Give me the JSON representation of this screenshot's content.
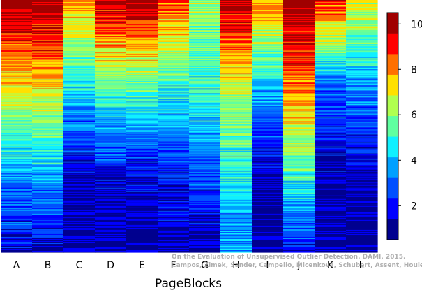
{
  "chart_data": {
    "type": "heatmap",
    "xlabel": "PageBlocks",
    "categories": [
      "A",
      "B",
      "C",
      "D",
      "E",
      "F",
      "G",
      "H",
      "I",
      "J",
      "K",
      "L"
    ],
    "colorbar": {
      "range": [
        0.5,
        10.5
      ],
      "ticks": [
        2,
        4,
        6,
        8,
        10
      ],
      "colors": [
        "#00008F",
        "#0000FF",
        "#0050FF",
        "#00A0FF",
        "#10F0FF",
        "#60FFA0",
        "#B0FF50",
        "#FFE000",
        "#FF7000",
        "#FF0000",
        "#A00000"
      ]
    },
    "columns_profile": [
      {
        "name": "A",
        "top": 10.5,
        "mid": 7.0,
        "low": 3.5,
        "bottom": 1.5
      },
      {
        "name": "B",
        "top": 10.5,
        "mid": 7.2,
        "low": 3.5,
        "bottom": 1.5
      },
      {
        "name": "C",
        "top": 8.0,
        "mid": 4.5,
        "low": 1.3,
        "bottom": 1.0
      },
      {
        "name": "D",
        "top": 10.0,
        "mid": 5.5,
        "low": 1.5,
        "bottom": 1.0
      },
      {
        "name": "E",
        "top": 10.0,
        "mid": 5.5,
        "low": 1.5,
        "bottom": 1.0
      },
      {
        "name": "F",
        "top": 8.5,
        "mid": 5.0,
        "low": 2.0,
        "bottom": 1.0
      },
      {
        "name": "G",
        "top": 6.0,
        "mid": 5.0,
        "low": 2.5,
        "bottom": 1.0
      },
      {
        "name": "H",
        "top": 10.0,
        "mid": 6.5,
        "low": 4.5,
        "bottom": 3.5
      },
      {
        "name": "I",
        "top": 8.0,
        "mid": 4.0,
        "low": 1.2,
        "bottom": 1.0
      },
      {
        "name": "J",
        "top": 10.5,
        "mid": 8.0,
        "low": 5.0,
        "bottom": 2.0
      },
      {
        "name": "K",
        "top": 9.0,
        "mid": 3.0,
        "low": 1.2,
        "bottom": 1.0
      },
      {
        "name": "L",
        "top": 7.0,
        "mid": 3.5,
        "low": 1.2,
        "bottom": 1.0
      }
    ]
  },
  "watermark": {
    "line1": "On the Evaluation of Unsupervised Outlier Detection. DAMI, 2015.",
    "line2": "Campos, Zimek, Sander, Campello, Micenková, Schubert, Assent, Houle"
  }
}
